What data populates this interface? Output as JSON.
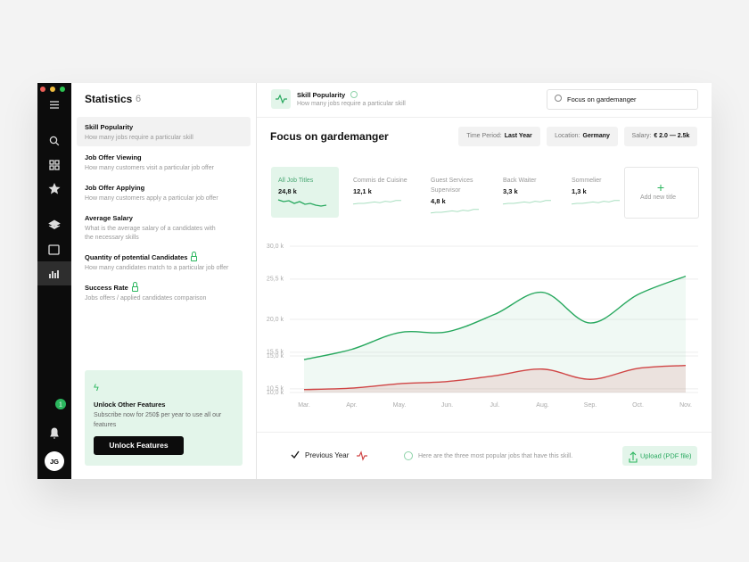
{
  "sidebar": {
    "avatar": "JG",
    "badge": "1"
  },
  "left_panel": {
    "title": "Statistics",
    "count": "6",
    "items": [
      {
        "title": "Skill Popularity",
        "subtitle": "How many jobs require a particular skill"
      },
      {
        "title": "Job Offer Viewing",
        "subtitle": "How many customers visit a particular job offer"
      },
      {
        "title": "Job Offer Applying",
        "subtitle": "How many customers apply a particular job offer"
      },
      {
        "title": "Average Salary",
        "subtitle": "What is the average salary of a candidates with the necessary skills"
      },
      {
        "title": "Quantity of potential Candidates",
        "subtitle": "How many candidates match to a particular job offer",
        "locked": true
      },
      {
        "title": "Success Rate",
        "subtitle": "Jobs offers / applied candidates comparison",
        "locked": true
      }
    ],
    "promo": {
      "title": "Unlock Other Features",
      "text": "Subscribe now for 250$ per year to use all our features",
      "button": "Unlock Features"
    }
  },
  "header": {
    "title": "Skill Popularity",
    "subtitle": "How many jobs require a particular skill",
    "search": "Focus on gardemanger"
  },
  "main": {
    "heading": "Focus on gardemanger",
    "filters": [
      {
        "label": "Time Period:",
        "value": "Last Year"
      },
      {
        "label": "Location:",
        "value": "Germany"
      },
      {
        "label": "Salary:",
        "value": "€ 2.0 — 2.5k"
      }
    ],
    "cards": [
      {
        "title": "All Job Titles",
        "value": "24,8 k"
      },
      {
        "title": "Commis de Cuisine",
        "value": "12,1 k"
      },
      {
        "title": "Guest Services Supervisor",
        "value": "4,8 k"
      },
      {
        "title": "Back Waiter",
        "value": "3,3 k"
      },
      {
        "title": "Sommelier",
        "value": "1,3 k"
      }
    ],
    "add_card": "Add new title"
  },
  "chart_data": {
    "type": "area",
    "categories": [
      "Mar.",
      "Apr.",
      "May.",
      "Jun.",
      "Jul.",
      "Aug.",
      "Sep.",
      "Oct.",
      "Nov."
    ],
    "series": [
      {
        "color": "#27a85e",
        "values": [
          14500,
          15900,
          18200,
          18300,
          20700,
          23700,
          19500,
          23400,
          25900
        ]
      },
      {
        "name": "Previous Year",
        "color": "#d04545",
        "values": [
          10400,
          10600,
          11200,
          11500,
          12300,
          13200,
          11800,
          13300,
          13700
        ]
      }
    ],
    "ylim": [
      10000,
      30000
    ],
    "yticks": [
      {
        "value": 30000,
        "label": "30,0 k"
      },
      {
        "value": 25500,
        "label": "25,5 k"
      },
      {
        "value": 20000,
        "label": "20,0 k"
      },
      {
        "value": 15500,
        "label": "15,5 k"
      },
      {
        "value": 15000,
        "label": "15,0 k"
      },
      {
        "value": 10500,
        "label": "10,5 k"
      },
      {
        "value": 10000,
        "label": "10,0 k"
      }
    ],
    "grid": true
  },
  "footer": {
    "info": "Here are the three most popular jobs that have this skill.",
    "upload": "Upload (PDF file)"
  }
}
